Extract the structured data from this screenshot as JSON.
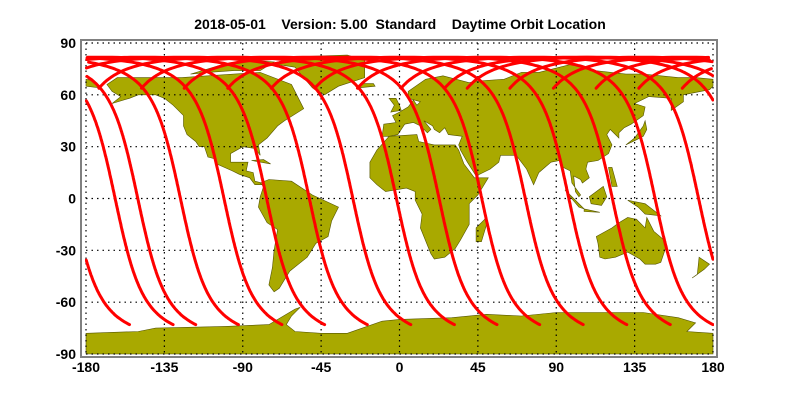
{
  "title": "2018-05-01    Version: 5.00  Standard    Daytime Orbit Location",
  "colors": {
    "land": "#a9a900",
    "coast": "#555500",
    "track": "#ff0000",
    "grid": "#000000",
    "frame": "#808080"
  },
  "chart_data": {
    "type": "map",
    "projection": "equirectangular",
    "xlim": [
      -180,
      180
    ],
    "ylim": [
      -90,
      90
    ],
    "x_ticks": [
      "-180",
      "-135",
      "-90",
      "-45",
      "0",
      "45",
      "90",
      "135",
      "180"
    ],
    "y_ticks": [
      "90",
      "60",
      "30",
      "0",
      "-30",
      "-60",
      "-90"
    ],
    "grid": true,
    "grid_style": "dotted",
    "tracks": {
      "description_of_marks": "ascending daytime orbit passes",
      "south_end_lat": -73,
      "max_lat": 81.8,
      "south_end_lons": [
        -155,
        -130,
        -117,
        -92.5,
        -67.5,
        -43,
        -18.5,
        6.5,
        31.5,
        56,
        80.5,
        105.5,
        130.5,
        155.5,
        180
      ]
    }
  }
}
